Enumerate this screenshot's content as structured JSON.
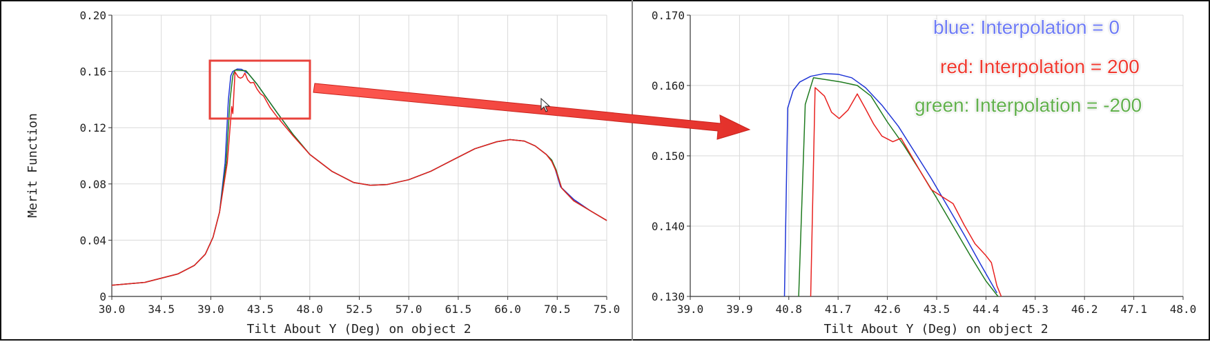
{
  "legend": {
    "blue": "blue: Interpolation = 0",
    "red": "red: Interpolation = 200",
    "green": "green: Interpolation = -200"
  },
  "colors": {
    "blue": "#1f35d6",
    "red": "#e8201e",
    "green": "#1e7a1e",
    "annotation": "#e8433c",
    "legend_blue": "#6f7cf5",
    "legend_red": "#f03a30",
    "legend_green": "#62b04d"
  },
  "chart_data": [
    {
      "type": "line",
      "title": "",
      "xlabel": "Tilt About Y (Deg) on object 2",
      "ylabel": "Merit Function",
      "xlim": [
        30.0,
        75.0
      ],
      "ylim": [
        0,
        0.2
      ],
      "xticks": [
        "30.0",
        "34.5",
        "39.0",
        "43.5",
        "48.0",
        "52.5",
        "57.0",
        "61.5",
        "66.0",
        "70.5",
        "75.0"
      ],
      "yticks": [
        "0",
        "0.04",
        "0.08",
        "0.12",
        "0.16",
        "0.20"
      ],
      "grid": true,
      "series": [
        {
          "color_key": "blue",
          "points": [
            [
              30,
              0.008
            ],
            [
              33,
              0.01
            ],
            [
              36,
              0.016
            ],
            [
              37.5,
              0.022
            ],
            [
              38.5,
              0.03
            ],
            [
              39.2,
              0.042
            ],
            [
              39.8,
              0.06
            ],
            [
              40.3,
              0.095
            ],
            [
              40.6,
              0.14
            ],
            [
              40.82,
              0.157
            ],
            [
              41.0,
              0.16
            ],
            [
              41.4,
              0.1617
            ],
            [
              41.8,
              0.1615
            ],
            [
              42.4,
              0.1585
            ],
            [
              43.2,
              0.151
            ],
            [
              44,
              0.142
            ],
            [
              45,
              0.131
            ],
            [
              46.5,
              0.115
            ],
            [
              48,
              0.101
            ],
            [
              50,
              0.089
            ],
            [
              52,
              0.081
            ],
            [
              53.5,
              0.079
            ],
            [
              55,
              0.0795
            ],
            [
              57,
              0.083
            ],
            [
              59,
              0.089
            ],
            [
              61,
              0.097
            ],
            [
              63,
              0.105
            ],
            [
              65,
              0.11
            ],
            [
              66.2,
              0.1115
            ],
            [
              67.5,
              0.1105
            ],
            [
              68.5,
              0.107
            ],
            [
              69.5,
              0.101
            ],
            [
              70.0,
              0.097
            ],
            [
              70.3,
              0.091
            ],
            [
              70.8,
              0.078
            ],
            [
              72,
              0.069
            ],
            [
              73.5,
              0.061
            ],
            [
              75,
              0.054
            ]
          ]
        },
        {
          "color_key": "green",
          "points": [
            [
              30,
              0.008
            ],
            [
              33,
              0.01
            ],
            [
              36,
              0.016
            ],
            [
              37.5,
              0.022
            ],
            [
              38.5,
              0.03
            ],
            [
              39.2,
              0.042
            ],
            [
              39.8,
              0.06
            ],
            [
              40.4,
              0.095
            ],
            [
              40.75,
              0.14
            ],
            [
              41.0,
              0.157
            ],
            [
              41.2,
              0.161
            ],
            [
              42.2,
              0.1605
            ],
            [
              43.2,
              0.151
            ],
            [
              44,
              0.142
            ],
            [
              45,
              0.131
            ],
            [
              46.5,
              0.115
            ],
            [
              48,
              0.101
            ],
            [
              50,
              0.089
            ],
            [
              52,
              0.081
            ],
            [
              53.5,
              0.079
            ],
            [
              55,
              0.0795
            ],
            [
              57,
              0.083
            ],
            [
              59,
              0.089
            ],
            [
              61,
              0.097
            ],
            [
              63,
              0.105
            ],
            [
              65,
              0.11
            ],
            [
              66.2,
              0.1115
            ],
            [
              67.5,
              0.1105
            ],
            [
              68.5,
              0.107
            ],
            [
              69.5,
              0.101
            ],
            [
              70.0,
              0.097
            ],
            [
              70.4,
              0.09
            ],
            [
              70.9,
              0.077
            ],
            [
              72,
              0.068
            ],
            [
              73.5,
              0.061
            ],
            [
              75,
              0.054
            ]
          ]
        },
        {
          "color_key": "red",
          "points": [
            [
              30,
              0.008
            ],
            [
              33,
              0.01
            ],
            [
              36,
              0.016
            ],
            [
              37.5,
              0.022
            ],
            [
              38.5,
              0.03
            ],
            [
              39.2,
              0.042
            ],
            [
              39.8,
              0.06
            ],
            [
              40.5,
              0.095
            ],
            [
              40.9,
              0.135
            ],
            [
              41.0,
              0.13
            ],
            [
              41.2,
              0.1596
            ],
            [
              41.5,
              0.156
            ],
            [
              41.7,
              0.1552
            ],
            [
              41.9,
              0.156
            ],
            [
              42.1,
              0.1588
            ],
            [
              42.35,
              0.154
            ],
            [
              42.6,
              0.1518
            ],
            [
              42.9,
              0.1522
            ],
            [
              43.2,
              0.1475
            ],
            [
              43.5,
              0.1442
            ],
            [
              43.8,
              0.1425
            ],
            [
              44.4,
              0.1342
            ],
            [
              45,
              0.128
            ],
            [
              46.5,
              0.114
            ],
            [
              48,
              0.101
            ],
            [
              50,
              0.089
            ],
            [
              52,
              0.081
            ],
            [
              53.5,
              0.079
            ],
            [
              55,
              0.0795
            ],
            [
              57,
              0.083
            ],
            [
              59,
              0.089
            ],
            [
              61,
              0.097
            ],
            [
              63,
              0.105
            ],
            [
              65,
              0.11
            ],
            [
              66.2,
              0.1115
            ],
            [
              67.5,
              0.1105
            ],
            [
              68.5,
              0.107
            ],
            [
              69.5,
              0.101
            ],
            [
              70.0,
              0.096
            ],
            [
              70.4,
              0.089
            ],
            [
              70.9,
              0.077
            ],
            [
              72,
              0.068
            ],
            [
              73.5,
              0.061
            ],
            [
              75,
              0.054
            ]
          ]
        }
      ]
    },
    {
      "type": "line",
      "title": "",
      "xlabel": "Tilt About Y (Deg) on object 2",
      "ylabel": "",
      "xlim": [
        39.0,
        48.0
      ],
      "ylim": [
        0.13,
        0.17
      ],
      "xticks": [
        "39.0",
        "39.9",
        "40.8",
        "41.7",
        "42.6",
        "43.5",
        "44.4",
        "45.3",
        "46.2",
        "47.1",
        "48.0"
      ],
      "yticks": [
        "0.130",
        "0.140",
        "0.150",
        "0.160",
        "0.170"
      ],
      "grid": true,
      "series": [
        {
          "color_key": "blue",
          "points": [
            [
              40.72,
              0.13
            ],
            [
              40.78,
              0.1568
            ],
            [
              40.88,
              0.1593
            ],
            [
              41.0,
              0.1605
            ],
            [
              41.2,
              0.1613
            ],
            [
              41.45,
              0.1617
            ],
            [
              41.7,
              0.1616
            ],
            [
              41.95,
              0.1611
            ],
            [
              42.2,
              0.1597
            ],
            [
              42.5,
              0.1572
            ],
            [
              42.8,
              0.1542
            ],
            [
              43.1,
              0.1505
            ],
            [
              43.4,
              0.1468
            ],
            [
              43.7,
              0.1428
            ],
            [
              44.0,
              0.1388
            ],
            [
              44.3,
              0.1346
            ],
            [
              44.6,
              0.1305
            ]
          ]
        },
        {
          "color_key": "green",
          "points": [
            [
              40.98,
              0.13
            ],
            [
              41.1,
              0.1573
            ],
            [
              41.25,
              0.1611
            ],
            [
              41.5,
              0.1608
            ],
            [
              41.75,
              0.1605
            ],
            [
              42.05,
              0.16
            ],
            [
              42.3,
              0.1585
            ],
            [
              42.6,
              0.1548
            ],
            [
              42.9,
              0.1515
            ],
            [
              43.2,
              0.1478
            ],
            [
              43.5,
              0.144
            ],
            [
              43.8,
              0.14
            ],
            [
              44.1,
              0.136
            ],
            [
              44.4,
              0.1322
            ],
            [
              44.62,
              0.13
            ]
          ]
        },
        {
          "color_key": "red",
          "points": [
            [
              41.2,
              0.13
            ],
            [
              41.28,
              0.1597
            ],
            [
              41.45,
              0.1585
            ],
            [
              41.58,
              0.1562
            ],
            [
              41.72,
              0.1553
            ],
            [
              41.88,
              0.1565
            ],
            [
              42.05,
              0.1588
            ],
            [
              42.2,
              0.1567
            ],
            [
              42.35,
              0.1545
            ],
            [
              42.5,
              0.1528
            ],
            [
              42.7,
              0.152
            ],
            [
              42.85,
              0.1525
            ],
            [
              43.0,
              0.1505
            ],
            [
              43.2,
              0.1478
            ],
            [
              43.4,
              0.1452
            ],
            [
              43.6,
              0.1442
            ],
            [
              43.8,
              0.1432
            ],
            [
              44.0,
              0.1402
            ],
            [
              44.2,
              0.1375
            ],
            [
              44.4,
              0.1358
            ],
            [
              44.5,
              0.1348
            ],
            [
              44.6,
              0.1315
            ],
            [
              44.68,
              0.13
            ]
          ]
        }
      ]
    }
  ]
}
